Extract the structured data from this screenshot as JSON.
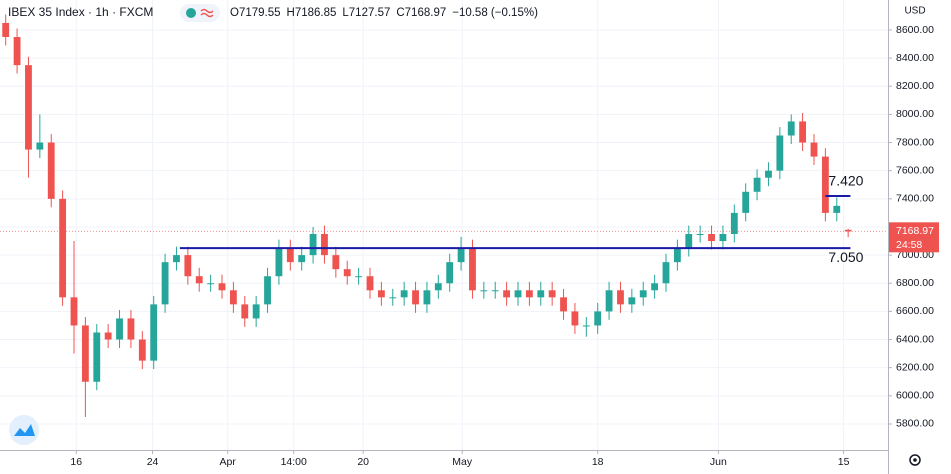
{
  "chart_data": {
    "type": "candlestick",
    "title": "IBEX 35 Index · 1h · FXCM",
    "ohlc_header": [
      "O7179.55",
      "H7186.85",
      "L7127.57",
      "C7168.97",
      "−10.58 (−0.15%)"
    ],
    "currency": "USD",
    "up_color": "#26a69a",
    "down_color": "#ef5350",
    "xlim": [
      0,
      78
    ],
    "xticks": [
      {
        "value": 6.7,
        "label": "16"
      },
      {
        "value": 13.4,
        "label": "24"
      },
      {
        "value": 20.0,
        "label": "Apr"
      },
      {
        "value": 25.8,
        "label": "14:00"
      },
      {
        "value": 31.9,
        "label": "20"
      },
      {
        "value": 40.6,
        "label": "May"
      },
      {
        "value": 52.5,
        "label": "18"
      },
      {
        "value": 63.1,
        "label": "Jun"
      },
      {
        "value": 74.1,
        "label": "15"
      }
    ],
    "ylim": [
      5615,
      8813
    ],
    "yticks": [
      {
        "value": 5800,
        "label": "5800.00"
      },
      {
        "value": 6000,
        "label": "6000.00"
      },
      {
        "value": 6200,
        "label": "6200.00"
      },
      {
        "value": 6400,
        "label": "6400.00"
      },
      {
        "value": 6600,
        "label": "6600.00"
      },
      {
        "value": 6800,
        "label": "6800.00"
      },
      {
        "value": 7000,
        "label": "7000.00"
      },
      {
        "value": 7200,
        "label": "7200.00"
      },
      {
        "value": 7400,
        "label": "7400.00"
      },
      {
        "value": 7600,
        "label": "7600.00"
      },
      {
        "value": 7800,
        "label": "7800.00"
      },
      {
        "value": 8000,
        "label": "8000.00"
      },
      {
        "value": 8200,
        "label": "8200.00"
      },
      {
        "value": 8400,
        "label": "8400.00"
      },
      {
        "value": 8600,
        "label": "8600.00"
      }
    ],
    "grid": true,
    "open": [
      8650,
      8550,
      8350,
      7750,
      7800,
      7400,
      6700,
      6500,
      6100,
      6450,
      6400,
      6550,
      6400,
      6250,
      6650,
      6950,
      7000,
      6850,
      6800,
      6800,
      6750,
      6650,
      6550,
      6650,
      6850,
      7050,
      6950,
      7000,
      7150,
      7000,
      6900,
      6850,
      6850,
      6750,
      6700,
      6700,
      6750,
      6650,
      6750,
      6800,
      6950,
      7050,
      6750,
      6750,
      6750,
      6700,
      6750,
      6700,
      6750,
      6700,
      6600,
      6500,
      6500,
      6600,
      6750,
      6650,
      6700,
      6750,
      6800,
      6950,
      7050,
      7150,
      7150,
      7100,
      7150,
      7300,
      7450,
      7550,
      7600,
      7850,
      7950,
      7800,
      7700,
      7300,
      7179.55
    ],
    "high": [
      8710,
      8610,
      8410,
      8000,
      7860,
      7460,
      7100,
      6560,
      6510,
      6510,
      6610,
      6610,
      6460,
      6710,
      7010,
      7060,
      7060,
      6910,
      6860,
      6860,
      6810,
      6710,
      6710,
      6910,
      7110,
      7110,
      7060,
      7200,
      7210,
      7060,
      6960,
      6910,
      6910,
      6810,
      6760,
      6810,
      6810,
      6810,
      6860,
      7010,
      7130,
      7110,
      6810,
      6810,
      6810,
      6810,
      6810,
      6810,
      6810,
      6760,
      6660,
      6560,
      6660,
      6810,
      6810,
      6760,
      6810,
      6860,
      7010,
      7110,
      7210,
      7210,
      7210,
      7210,
      7360,
      7510,
      7610,
      7660,
      7910,
      8000,
      8010,
      7860,
      7760,
      7410,
      7186.85
    ],
    "low": [
      8490,
      8290,
      7550,
      7690,
      7340,
      6640,
      6300,
      5850,
      6040,
      6340,
      6340,
      6340,
      6190,
      6190,
      6590,
      6890,
      6790,
      6740,
      6740,
      6690,
      6590,
      6490,
      6490,
      6590,
      6790,
      6890,
      6890,
      6940,
      6940,
      6840,
      6790,
      6790,
      6690,
      6640,
      6640,
      6640,
      6590,
      6590,
      6690,
      6740,
      6890,
      6690,
      6690,
      6690,
      6640,
      6640,
      6640,
      6640,
      6640,
      6540,
      6440,
      6420,
      6440,
      6540,
      6590,
      6590,
      6640,
      6690,
      6740,
      6890,
      6990,
      7090,
      7040,
      7040,
      7090,
      7240,
      7390,
      7490,
      7540,
      7790,
      7740,
      7640,
      7240,
      7240,
      7127.57
    ],
    "close": [
      8550,
      8350,
      7750,
      7800,
      7400,
      6700,
      6500,
      6100,
      6450,
      6400,
      6550,
      6400,
      6250,
      6650,
      6950,
      7000,
      6850,
      6800,
      6800,
      6750,
      6650,
      6550,
      6650,
      6850,
      7050,
      6950,
      7000,
      7150,
      7000,
      6900,
      6850,
      6850,
      6750,
      6700,
      6700,
      6750,
      6650,
      6750,
      6800,
      6950,
      7050,
      6750,
      6750,
      6750,
      6700,
      6750,
      6700,
      6750,
      6700,
      6600,
      6500,
      6500,
      6600,
      6750,
      6650,
      6700,
      6750,
      6800,
      6950,
      7050,
      7150,
      7150,
      7100,
      7150,
      7300,
      7450,
      7550,
      7600,
      7850,
      7950,
      7800,
      7700,
      7300,
      7350,
      7168.97
    ],
    "hlines": [
      {
        "value": 7050,
        "label": "7.050",
        "from": 15.8,
        "to": 74.7,
        "color": "#1a1aa8"
      },
      {
        "value": 7420,
        "label": "7.420",
        "from": 72.5,
        "to": 74.7,
        "color": "#1a1aa8"
      }
    ],
    "last_price": {
      "value": 7168.97,
      "label": "7168.97"
    },
    "countdown": "24:58"
  }
}
